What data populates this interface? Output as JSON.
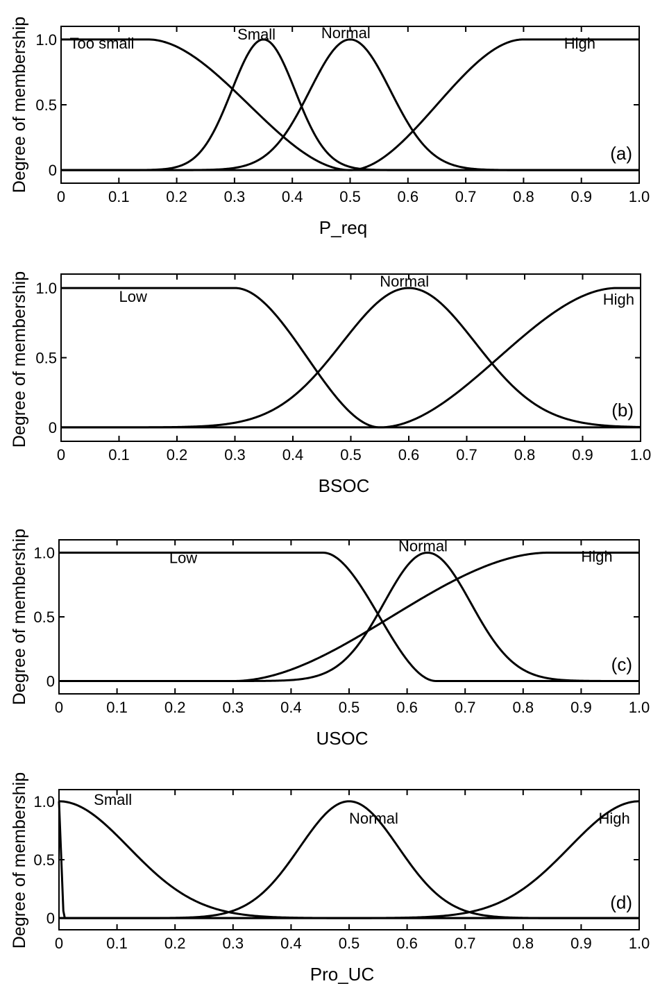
{
  "chart_data": [
    {
      "type": "line",
      "panel_tag": "(a)",
      "xlabel": "P_req",
      "ylabel": "Degree of membership",
      "xlim": [
        0,
        1.0
      ],
      "ylim": [
        -0.1,
        1.1
      ],
      "x_ticks": [
        0,
        0.1,
        0.2,
        0.3,
        0.4,
        0.5,
        0.6,
        0.7,
        0.8,
        0.9,
        1.0
      ],
      "x_tick_labels": [
        "0",
        "0.1",
        "0.2",
        "0.3",
        "0.4",
        "0.5",
        "0.6",
        "0.7",
        "0.8",
        "0.9",
        "1.0"
      ],
      "y_ticks": [
        0,
        0.5,
        1.0
      ],
      "y_tick_labels": [
        "0",
        "0.5",
        "1.0"
      ],
      "grid": false,
      "series": [
        {
          "name": "Too small",
          "shape": "z",
          "params": {
            "top_until": 0.15,
            "zero_from": 0.5
          },
          "label_at": [
            0.015,
            0.93
          ]
        },
        {
          "name": "Small",
          "shape": "gauss",
          "params": {
            "center": 0.35,
            "sigma": 0.055
          },
          "label_at": [
            0.305,
            1.0
          ]
        },
        {
          "name": "Normal",
          "shape": "gauss",
          "params": {
            "center": 0.5,
            "sigma": 0.07
          },
          "label_at": [
            0.45,
            1.01
          ]
        },
        {
          "name": "High",
          "shape": "s",
          "params": {
            "zero_until": 0.5,
            "top_from": 0.8
          },
          "label_at": [
            0.87,
            0.93
          ]
        }
      ]
    },
    {
      "type": "line",
      "panel_tag": "(b)",
      "xlabel": "BSOC",
      "ylabel": "Degree of membership",
      "xlim": [
        0,
        1.0
      ],
      "ylim": [
        -0.1,
        1.1
      ],
      "x_ticks": [
        0,
        0.1,
        0.2,
        0.3,
        0.4,
        0.5,
        0.6,
        0.7,
        0.8,
        0.9,
        1.0
      ],
      "x_tick_labels": [
        "0",
        "0.1",
        "0.2",
        "0.3",
        "0.4",
        "0.5",
        "0.6",
        "0.7",
        "0.8",
        "0.9",
        "1.0"
      ],
      "y_ticks": [
        0,
        0.5,
        1.0
      ],
      "y_tick_labels": [
        "0",
        "0.5",
        "1.0"
      ],
      "grid": false,
      "series": [
        {
          "name": "Low",
          "shape": "z",
          "params": {
            "top_until": 0.3,
            "zero_from": 0.55
          },
          "label_at": [
            0.1,
            0.9
          ]
        },
        {
          "name": "Normal",
          "shape": "gauss",
          "params": {
            "center": 0.6,
            "sigma": 0.115
          },
          "label_at": [
            0.55,
            1.01
          ]
        },
        {
          "name": "High",
          "shape": "s",
          "params": {
            "zero_until": 0.55,
            "top_from": 0.96
          },
          "label_at": [
            0.935,
            0.88
          ]
        }
      ]
    },
    {
      "type": "line",
      "panel_tag": "(c)",
      "xlabel": "USOC",
      "ylabel": "Degree of membership",
      "xlim": [
        0,
        1.0
      ],
      "ylim": [
        -0.1,
        1.1
      ],
      "x_ticks": [
        0,
        0.1,
        0.2,
        0.3,
        0.4,
        0.5,
        0.6,
        0.7,
        0.8,
        0.9,
        1.0
      ],
      "x_tick_labels": [
        "0",
        "0.1",
        "0.2",
        "0.3",
        "0.4",
        "0.5",
        "0.6",
        "0.7",
        "0.8",
        "0.9",
        "1.0"
      ],
      "y_ticks": [
        0,
        0.5,
        1.0
      ],
      "y_tick_labels": [
        "0",
        "0.5",
        "1.0"
      ],
      "grid": false,
      "series": [
        {
          "name": "Low",
          "shape": "z",
          "params": {
            "top_until": 0.455,
            "zero_from": 0.65
          },
          "label_at": [
            0.19,
            0.92
          ]
        },
        {
          "name": "Normal",
          "shape": "gauss",
          "params": {
            "center": 0.635,
            "sigma": 0.075
          },
          "label_at": [
            0.585,
            1.01
          ]
        },
        {
          "name": "High",
          "shape": "s",
          "params": {
            "zero_until": 0.3,
            "top_from": 0.845
          },
          "label_at": [
            0.9,
            0.93
          ]
        }
      ]
    },
    {
      "type": "line",
      "panel_tag": "(d)",
      "xlabel": "Pro_UC",
      "ylabel": "Degree of membership",
      "xlim": [
        0,
        1.0
      ],
      "ylim": [
        -0.1,
        1.1
      ],
      "x_ticks": [
        0,
        0.1,
        0.2,
        0.3,
        0.4,
        0.5,
        0.6,
        0.7,
        0.8,
        0.9,
        1.0
      ],
      "x_tick_labels": [
        "0",
        "0.1",
        "0.2",
        "0.3",
        "0.4",
        "0.5",
        "0.6",
        "0.7",
        "0.8",
        "0.9",
        "1.0"
      ],
      "y_ticks": [
        0,
        0.5,
        1.0
      ],
      "y_tick_labels": [
        "0",
        "0.5",
        "1.0"
      ],
      "grid": false,
      "series": [
        {
          "name": "Small",
          "shape": "gauss",
          "params": {
            "center": 0.0,
            "sigma": 0.12
          },
          "label_at": [
            0.06,
            0.97
          ]
        },
        {
          "name": "Normal",
          "shape": "gauss",
          "params": {
            "center": 0.5,
            "sigma": 0.085
          },
          "label_at": [
            0.5,
            0.81
          ]
        },
        {
          "name": "High",
          "shape": "gauss",
          "params": {
            "center": 1.0,
            "sigma": 0.12
          },
          "label_at": [
            0.93,
            0.81
          ]
        },
        {
          "name": "",
          "shape": "spike",
          "params": {
            "top_at": 0.0,
            "zero_at": 0.008
          }
        }
      ]
    }
  ]
}
